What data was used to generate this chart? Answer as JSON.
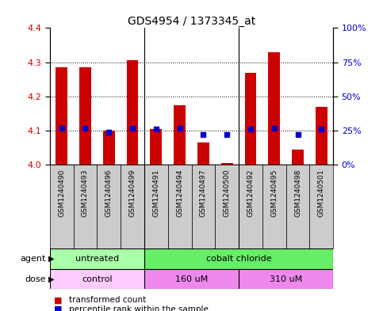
{
  "title": "GDS4954 / 1373345_at",
  "samples": [
    "GSM1240490",
    "GSM1240493",
    "GSM1240496",
    "GSM1240499",
    "GSM1240491",
    "GSM1240494",
    "GSM1240497",
    "GSM1240500",
    "GSM1240492",
    "GSM1240495",
    "GSM1240498",
    "GSM1240501"
  ],
  "transformed_counts": [
    4.285,
    4.285,
    4.1,
    4.305,
    4.105,
    4.175,
    4.065,
    4.005,
    4.27,
    4.33,
    4.045,
    4.17
  ],
  "percentile_ranks": [
    27,
    27,
    24,
    27,
    26,
    27,
    22,
    22,
    26,
    27,
    22,
    26
  ],
  "ylim_left": [
    4.0,
    4.4
  ],
  "ylim_right": [
    0,
    100
  ],
  "yticks_left": [
    4.0,
    4.1,
    4.2,
    4.3,
    4.4
  ],
  "yticks_right": [
    0,
    25,
    50,
    75,
    100
  ],
  "ytick_labels_right": [
    "0%",
    "25%",
    "50%",
    "75%",
    "100%"
  ],
  "bar_color": "#cc0000",
  "dot_color": "#0000cc",
  "bar_bottom": 4.0,
  "agent_groups": [
    {
      "label": "untreated",
      "start": 0,
      "end": 4,
      "color": "#aaffaa"
    },
    {
      "label": "cobalt chloride",
      "start": 4,
      "end": 12,
      "color": "#66ee66"
    }
  ],
  "dose_groups": [
    {
      "label": "control",
      "start": 0,
      "end": 4,
      "color": "#ffccff"
    },
    {
      "label": "160 uM",
      "start": 4,
      "end": 8,
      "color": "#ee88ee"
    },
    {
      "label": "310 uM",
      "start": 8,
      "end": 12,
      "color": "#ee88ee"
    }
  ],
  "legend_items": [
    {
      "label": "transformed count",
      "color": "#cc0000"
    },
    {
      "label": "percentile rank within the sample",
      "color": "#0000cc"
    }
  ],
  "agent_label": "agent",
  "dose_label": "dose",
  "bg_color": "#ffffff",
  "xtick_bg_color": "#cccccc",
  "tick_label_color_left": "#cc0000",
  "tick_label_color_right": "#0000cc",
  "bar_width": 0.5,
  "figsize": [
    4.83,
    3.93
  ],
  "dpi": 100
}
